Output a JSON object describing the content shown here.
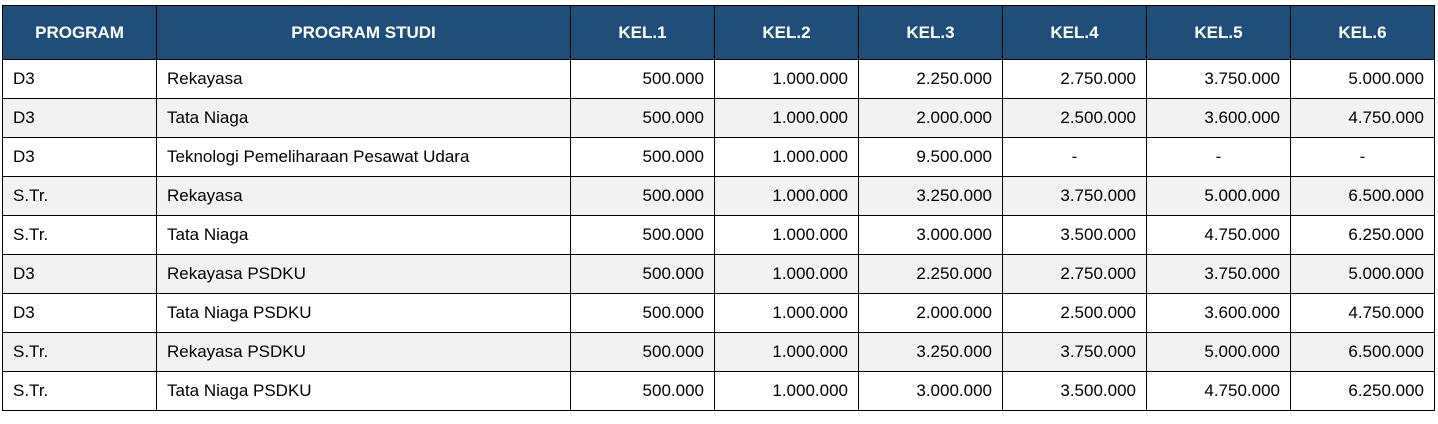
{
  "colors": {
    "header_bg": "#1F4E79",
    "header_text": "#FFFFFF",
    "row_bg": "#FFFFFF",
    "row_alt_bg": "#F2F2F2",
    "border": "#000000"
  },
  "table": {
    "columns": [
      {
        "label": "PROGRAM"
      },
      {
        "label": "PROGRAM STUDI"
      },
      {
        "label": "KEL.1"
      },
      {
        "label": "KEL.2"
      },
      {
        "label": "KEL.3"
      },
      {
        "label": "KEL.4"
      },
      {
        "label": "KEL.5"
      },
      {
        "label": "KEL.6"
      }
    ],
    "rows": [
      {
        "program": "D3",
        "studi": "Rekayasa",
        "values": [
          "500.000",
          "1.000.000",
          "2.250.000",
          "2.750.000",
          "3.750.000",
          "5.000.000"
        ]
      },
      {
        "program": "D3",
        "studi": "Tata Niaga",
        "values": [
          "500.000",
          "1.000.000",
          "2.000.000",
          "2.500.000",
          "3.600.000",
          "4.750.000"
        ]
      },
      {
        "program": "D3",
        "studi": "Teknologi Pemeliharaan Pesawat Udara",
        "values": [
          "500.000",
          "1.000.000",
          "9.500.000",
          "-",
          "-",
          "-"
        ]
      },
      {
        "program": "S.Tr.",
        "studi": "Rekayasa",
        "values": [
          "500.000",
          "1.000.000",
          "3.250.000",
          "3.750.000",
          "5.000.000",
          "6.500.000"
        ]
      },
      {
        "program": "S.Tr.",
        "studi": "Tata Niaga",
        "values": [
          "500.000",
          "1.000.000",
          "3.000.000",
          "3.500.000",
          "4.750.000",
          "6.250.000"
        ]
      },
      {
        "program": "D3",
        "studi": "Rekayasa PSDKU",
        "values": [
          "500.000",
          "1.000.000",
          "2.250.000",
          "2.750.000",
          "3.750.000",
          "5.000.000"
        ]
      },
      {
        "program": "D3",
        "studi": "Tata Niaga PSDKU",
        "values": [
          "500.000",
          "1.000.000",
          "2.000.000",
          "2.500.000",
          "3.600.000",
          "4.750.000"
        ]
      },
      {
        "program": "S.Tr.",
        "studi": "Rekayasa PSDKU",
        "values": [
          "500.000",
          "1.000.000",
          "3.250.000",
          "3.750.000",
          "5.000.000",
          "6.500.000"
        ]
      },
      {
        "program": "S.Tr.",
        "studi": "Tata Niaga PSDKU",
        "values": [
          "500.000",
          "1.000.000",
          "3.000.000",
          "3.500.000",
          "4.750.000",
          "6.250.000"
        ]
      }
    ]
  }
}
